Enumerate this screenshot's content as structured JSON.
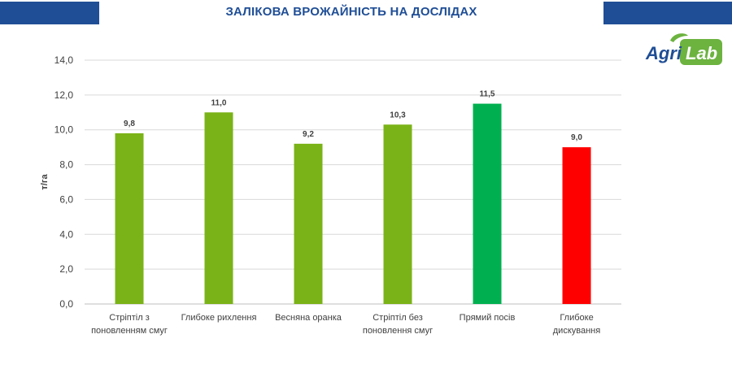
{
  "header": {
    "title": "ЗАЛІКОВА ВРОЖАЙНІСТЬ НА ДОСЛІДАХ"
  },
  "logo": {
    "text_left": "Agri",
    "text_right": "Lab"
  },
  "colors": {
    "header_bar": "#1f4e96",
    "bar_green": "#7ab317",
    "bar_dark_green": "#00b050",
    "bar_red": "#ff0000",
    "logo_green": "#6cb33f"
  },
  "chart_data": {
    "type": "bar",
    "title": "ЗАЛІКОВА ВРОЖАЙНІСТЬ НА ДОСЛІДАХ",
    "ylabel": "т/га",
    "xlabel": "",
    "ylim": [
      0,
      14
    ],
    "y_ticks": [
      "0,0",
      "2,0",
      "4,0",
      "6,0",
      "8,0",
      "10,0",
      "12,0",
      "14,0"
    ],
    "grid": true,
    "legend": "none",
    "categories": [
      [
        "Стріптіл з",
        "поновленням смуг"
      ],
      [
        "Глибоке рихлення"
      ],
      [
        "Весняна оранка"
      ],
      [
        "Стріптіл без",
        "поновлення смуг"
      ],
      [
        "Прямий посів"
      ],
      [
        "Глибоке",
        "дискування"
      ]
    ],
    "values": [
      9.8,
      11.0,
      9.2,
      10.3,
      11.5,
      9.0
    ],
    "value_labels": [
      "9,8",
      "11,0",
      "9,2",
      "10,3",
      "11,5",
      "9,0"
    ],
    "bar_colors": [
      "#7ab317",
      "#7ab317",
      "#7ab317",
      "#7ab317",
      "#00b050",
      "#ff0000"
    ]
  }
}
